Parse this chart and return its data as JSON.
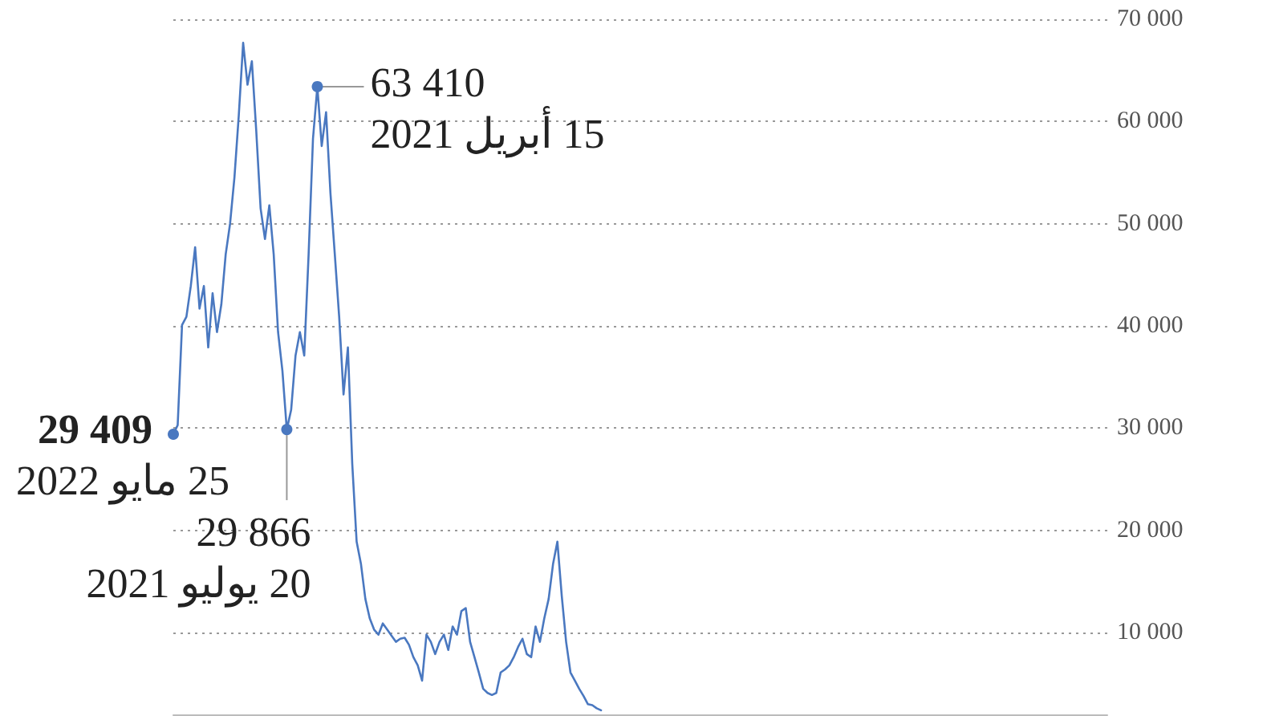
{
  "chart_data": {
    "type": "line",
    "categories": [
      null,
      null,
      null,
      null,
      null,
      null,
      null,
      null,
      null,
      null,
      null,
      null,
      null,
      null,
      null,
      null,
      null,
      null,
      null,
      null,
      null,
      null,
      null,
      null,
      null,
      null,
      null,
      null,
      null,
      null,
      null,
      null,
      null,
      null,
      null,
      null,
      null,
      null,
      null,
      null,
      null,
      null,
      null,
      null,
      null,
      null,
      null,
      null,
      null,
      null,
      null,
      null,
      null,
      null,
      null,
      null,
      null,
      null,
      null,
      null,
      null,
      null,
      null,
      null,
      null,
      null,
      null,
      null,
      null,
      null,
      null,
      null,
      null,
      null,
      null,
      null,
      null,
      null,
      null,
      null,
      null,
      null,
      null,
      null,
      null,
      null,
      null,
      null,
      null,
      null,
      null,
      null,
      null,
      null,
      null,
      null,
      null,
      null,
      null,
      null,
      null,
      null,
      null,
      null,
      null,
      null,
      null,
      null,
      null,
      null,
      null,
      null,
      null,
      null,
      null,
      null,
      null,
      null,
      null,
      null,
      null,
      null,
      null,
      null,
      null,
      null,
      null,
      null,
      null,
      null,
      null,
      null,
      null,
      null,
      null,
      null,
      null,
      null,
      null,
      null,
      null,
      null,
      null,
      null,
      null,
      null,
      null,
      null,
      null,
      null,
      null,
      null,
      null,
      null,
      null,
      null,
      null,
      null,
      null,
      null,
      null,
      null,
      null,
      null,
      null,
      null,
      null,
      null,
      null,
      null,
      null,
      null,
      null,
      null,
      null,
      null,
      null,
      null,
      null,
      null,
      null,
      null,
      null,
      null,
      null,
      null,
      null,
      null,
      null,
      null,
      null,
      null,
      null,
      null,
      null,
      null,
      null,
      null,
      null,
      null,
      null,
      null,
      null,
      null,
      null,
      null,
      null,
      null,
      null,
      null,
      null,
      null,
      null,
      null,
      null
    ],
    "series": [
      {
        "color": "#4a78c0",
        "values": [
          29409,
          30300,
          40100,
          40900,
          43900,
          47700,
          41700,
          43900,
          37900,
          43200,
          39400,
          42100,
          47000,
          50000,
          54500,
          60600,
          67700,
          63600,
          65900,
          59100,
          51500,
          48500,
          51800,
          47000,
          39400,
          35600,
          29866,
          31800,
          37100,
          39400,
          37100,
          47000,
          58300,
          63410,
          57600,
          60900,
          53000,
          47000,
          40900,
          33300,
          37900,
          26500,
          18900,
          16700,
          13300,
          11400,
          10300,
          9800,
          10900,
          10300,
          9700,
          9100,
          9400,
          9500,
          8800,
          7600,
          6800,
          5300,
          9800,
          9100,
          7900,
          9100,
          9800,
          8300,
          10600,
          9800,
          12100,
          12400,
          9100,
          7600,
          6100,
          4500,
          4100,
          3900,
          4100,
          6100,
          6400,
          6800,
          7600,
          8600,
          9400,
          7900,
          7600,
          10600,
          9100,
          11400,
          13300,
          16700,
          18900,
          13600,
          9100,
          6100,
          5300,
          4500,
          3800,
          3000,
          2900,
          2600,
          2400,
          null,
          null,
          null,
          null,
          null,
          null,
          null,
          null,
          null,
          null,
          null,
          null,
          null,
          null,
          null,
          null,
          null,
          null,
          null,
          null,
          null,
          null,
          null,
          null,
          null,
          null,
          null,
          null,
          null,
          null,
          null,
          null,
          null,
          null,
          null,
          null,
          null,
          null,
          null,
          null,
          null,
          null,
          null,
          null,
          null,
          null,
          null,
          null,
          null,
          null,
          null,
          null,
          null,
          null,
          null,
          null,
          null,
          null,
          null,
          null,
          null,
          null,
          null,
          null,
          null,
          null,
          null,
          null,
          null,
          null,
          null,
          null,
          null,
          null,
          null,
          null,
          null,
          null,
          null,
          null,
          null,
          null,
          null,
          null,
          null,
          null,
          null,
          null,
          null,
          null,
          null,
          null,
          null,
          null,
          null,
          null,
          null,
          null,
          null,
          null,
          null,
          null,
          null,
          null,
          null,
          null,
          null,
          null,
          null,
          null,
          null,
          null,
          null,
          null,
          null,
          null
        ]
      }
    ],
    "ylim": [
      2000,
      70000
    ],
    "yticks": [
      {
        "value": 10000,
        "label": "10 000"
      },
      {
        "value": 20000,
        "label": "20 000"
      },
      {
        "value": 30000,
        "label": "30 000"
      },
      {
        "value": 40000,
        "label": "40 000"
      },
      {
        "value": 50000,
        "label": "50 000"
      },
      {
        "value": 60000,
        "label": "60 000"
      },
      {
        "value": 70000,
        "label": "70 000"
      }
    ],
    "grid": "y",
    "tick_labels": "y",
    "line_style": "solid",
    "annotations": [
      "29 409\n25 مايو 2022",
      "63 410\n15 أبريل 2021",
      "29 866\n20 يوليو 2021"
    ]
  }
}
